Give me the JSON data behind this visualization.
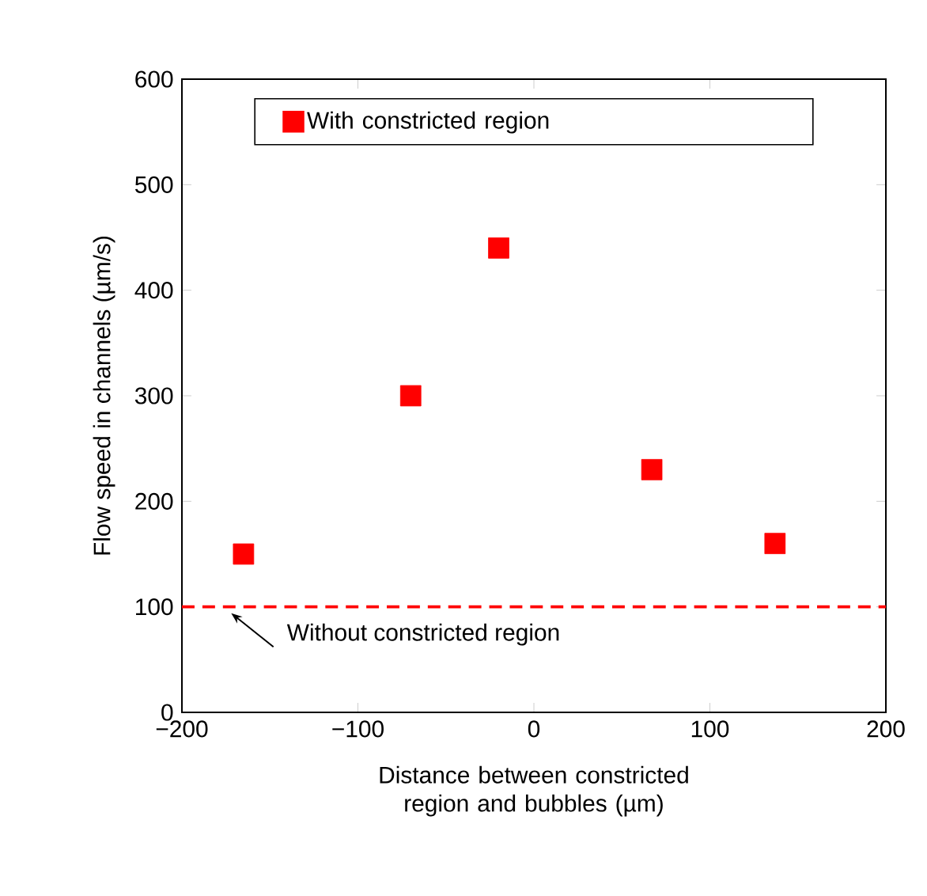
{
  "chart_data": {
    "type": "scatter",
    "xlabel": "Distance between constricted region and bubbles (µm)",
    "ylabel": "Flow speed in channels (µm/s)",
    "x": [
      -165,
      -70,
      -20,
      67,
      137
    ],
    "series": [
      {
        "name": "With constricted region",
        "color": "#ff0000",
        "values": [
          150,
          300,
          440,
          230,
          160
        ]
      }
    ],
    "marker": "square",
    "xlim": [
      -200,
      200
    ],
    "xticks": [
      {
        "value": -200,
        "label": "−200"
      },
      {
        "value": -100,
        "label": "−100"
      },
      0,
      100,
      200
    ],
    "ylim": [
      0,
      600
    ],
    "yticks": [
      0,
      100,
      200,
      300,
      400,
      500,
      600
    ],
    "ref_lines": [
      {
        "axis": "y",
        "value": 100,
        "label": "Without constricted region",
        "color": "#ff0000",
        "line_style": "dashed"
      }
    ],
    "legend": "top",
    "grid": false
  }
}
